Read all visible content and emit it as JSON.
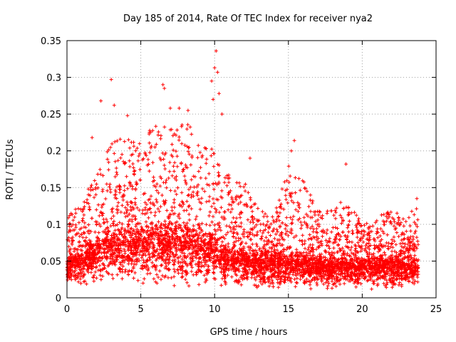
{
  "chart_data": {
    "type": "scatter",
    "title": "Day 185 of 2014, Rate Of TEC Index for receiver nya2",
    "xlabel": "GPS time / hours",
    "ylabel": "ROTI / TECUs",
    "xlim": [
      0,
      25
    ],
    "ylim": [
      0,
      0.35
    ],
    "xticks": [
      0,
      5,
      10,
      15,
      20,
      25
    ],
    "xtick_labels": [
      "0",
      "5",
      "10",
      "15",
      "20",
      "25"
    ],
    "yticks": [
      0,
      0.05,
      0.1,
      0.15,
      0.2,
      0.25,
      0.3,
      0.35
    ],
    "ytick_labels": [
      "0",
      "0.05",
      "0.1",
      "0.15",
      "0.2",
      "0.25",
      "0.3",
      "0.35"
    ],
    "grid": true,
    "marker": "+",
    "color": "#ff0000",
    "envelope": {
      "note": "Dense cloud of ROTI samples from ~0 to ~23.8 h; values below are the approximate lower/median/upper extent of the cloud vs time.",
      "hours": [
        0,
        1,
        2,
        3,
        4,
        5,
        6,
        7,
        8,
        9,
        10,
        11,
        12,
        13,
        14,
        15,
        16,
        17,
        18,
        19,
        20,
        21,
        22,
        23,
        23.8
      ],
      "lower": [
        0.015,
        0.015,
        0.015,
        0.015,
        0.015,
        0.015,
        0.015,
        0.012,
        0.012,
        0.012,
        0.01,
        0.01,
        0.01,
        0.01,
        0.01,
        0.01,
        0.01,
        0.01,
        0.01,
        0.01,
        0.01,
        0.01,
        0.01,
        0.01,
        0.015
      ],
      "median": [
        0.04,
        0.05,
        0.06,
        0.07,
        0.07,
        0.07,
        0.07,
        0.07,
        0.07,
        0.065,
        0.06,
        0.05,
        0.05,
        0.045,
        0.045,
        0.045,
        0.045,
        0.04,
        0.04,
        0.04,
        0.04,
        0.04,
        0.04,
        0.04,
        0.04
      ],
      "upper": [
        0.11,
        0.13,
        0.17,
        0.21,
        0.22,
        0.21,
        0.24,
        0.23,
        0.24,
        0.22,
        0.2,
        0.17,
        0.16,
        0.12,
        0.11,
        0.18,
        0.16,
        0.12,
        0.12,
        0.14,
        0.1,
        0.11,
        0.12,
        0.11,
        0.13
      ]
    },
    "outliers": [
      {
        "x": 3.0,
        "y": 0.297
      },
      {
        "x": 2.3,
        "y": 0.268
      },
      {
        "x": 3.2,
        "y": 0.262
      },
      {
        "x": 4.1,
        "y": 0.248
      },
      {
        "x": 6.5,
        "y": 0.29
      },
      {
        "x": 6.6,
        "y": 0.285
      },
      {
        "x": 7.0,
        "y": 0.258
      },
      {
        "x": 7.6,
        "y": 0.258
      },
      {
        "x": 8.2,
        "y": 0.255
      },
      {
        "x": 9.8,
        "y": 0.295
      },
      {
        "x": 10.0,
        "y": 0.313
      },
      {
        "x": 10.1,
        "y": 0.336
      },
      {
        "x": 10.2,
        "y": 0.307
      },
      {
        "x": 9.9,
        "y": 0.27
      },
      {
        "x": 10.3,
        "y": 0.278
      },
      {
        "x": 10.5,
        "y": 0.25
      },
      {
        "x": 1.7,
        "y": 0.218
      },
      {
        "x": 15.4,
        "y": 0.214
      },
      {
        "x": 15.2,
        "y": 0.2
      },
      {
        "x": 12.4,
        "y": 0.19
      },
      {
        "x": 18.9,
        "y": 0.182
      },
      {
        "x": 23.7,
        "y": 0.135
      }
    ]
  }
}
